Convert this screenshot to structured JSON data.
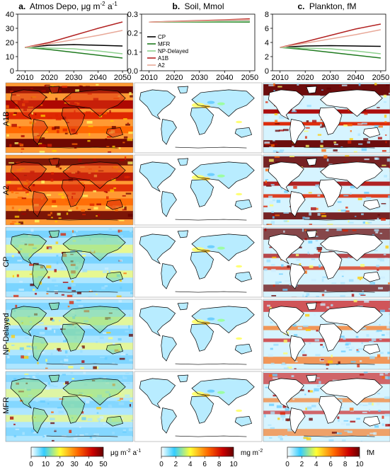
{
  "panels": [
    {
      "letter": "a.",
      "title": "Atmos Depo, μg m",
      "sup1": "-2",
      "mid": " a",
      "sup2": "-1"
    },
    {
      "letter": "b.",
      "title": "Soil, Mmol",
      "sup1": "",
      "mid": "",
      "sup2": ""
    },
    {
      "letter": "c.",
      "title": "Plankton, fM",
      "sup1": "",
      "mid": "",
      "sup2": ""
    }
  ],
  "row_labels": [
    "A1B",
    "A2",
    "CP",
    "NP-Delayed",
    "MFR"
  ],
  "colorbars": [
    {
      "ticks": [
        "0",
        "10",
        "20",
        "30",
        "40",
        "50"
      ],
      "unit": "μg m",
      "unit_sup1": "-2",
      "unit_mid": " a",
      "unit_sup2": "-1"
    },
    {
      "ticks": [
        "0",
        "2",
        "4",
        "6",
        "8",
        "10"
      ],
      "unit": "mg m",
      "unit_sup1": "-2",
      "unit_mid": "",
      "unit_sup2": ""
    },
    {
      "ticks": [
        "0",
        "2",
        "4",
        "6",
        "8",
        "10"
      ],
      "unit": "fM",
      "unit_sup1": "",
      "unit_mid": "",
      "unit_sup2": ""
    }
  ],
  "colors": {
    "CP": "#000000",
    "MFR": "#1f7a1f",
    "NP-Delayed": "#8cd08c",
    "A1B": "#b22222",
    "A2": "#e8a898",
    "colormap": [
      "#ffffff",
      "#33ccff",
      "#ffff33",
      "#ff6600",
      "#cc0000",
      "#660000"
    ]
  },
  "chart_data": [
    {
      "type": "line",
      "title": "Atmos Depo, μg m-2 a-1",
      "x": [
        2010,
        2020,
        2030,
        2040,
        2050
      ],
      "xticks": [
        "2010",
        "2020",
        "2030",
        "2040",
        "2050"
      ],
      "yticks": [
        "0",
        "10",
        "20",
        "30",
        "40"
      ],
      "xlim": [
        2007,
        2052
      ],
      "ylim": [
        0,
        40
      ],
      "legend": "none",
      "series": [
        {
          "name": "CP",
          "values": [
            16.5,
            18.0,
            18.5,
            18.0,
            17.5
          ]
        },
        {
          "name": "MFR",
          "values": [
            16.5,
            15.0,
            13.0,
            11.0,
            9.0
          ]
        },
        {
          "name": "NP-Delayed",
          "values": [
            16.5,
            16.0,
            15.5,
            14.0,
            12.0
          ]
        },
        {
          "name": "A1B",
          "values": [
            16.5,
            20.0,
            25.0,
            30.0,
            34.5
          ]
        },
        {
          "name": "A2",
          "values": [
            16.5,
            19.0,
            22.0,
            25.0,
            28.5
          ]
        }
      ]
    },
    {
      "type": "line",
      "title": "Soil, Mmol",
      "x": [
        2010,
        2020,
        2030,
        2040,
        2050
      ],
      "xticks": [
        "2010",
        "2020",
        "2030",
        "2040",
        "2050"
      ],
      "yticks": [
        "0.0",
        "0.1",
        "0.2",
        "0.3"
      ],
      "xlim": [
        2007,
        2052
      ],
      "ylim": [
        0,
        0.3
      ],
      "legend": "middle-right",
      "series": [
        {
          "name": "CP",
          "values": [
            0.258,
            0.259,
            0.26,
            0.261,
            0.262
          ]
        },
        {
          "name": "MFR",
          "values": [
            0.258,
            0.258,
            0.258,
            0.258,
            0.258
          ]
        },
        {
          "name": "NP-Delayed",
          "values": [
            0.258,
            0.259,
            0.26,
            0.26,
            0.261
          ]
        },
        {
          "name": "A1B",
          "values": [
            0.258,
            0.262,
            0.266,
            0.27,
            0.275
          ]
        },
        {
          "name": "A2",
          "values": [
            0.258,
            0.261,
            0.264,
            0.268,
            0.271
          ]
        }
      ]
    },
    {
      "type": "line",
      "title": "Plankton, fM",
      "x": [
        2010,
        2020,
        2030,
        2040,
        2050
      ],
      "xticks": [
        "2010",
        "2020",
        "2030",
        "2040",
        "2050"
      ],
      "yticks": [
        "0",
        "2",
        "4",
        "6",
        "8"
      ],
      "xlim": [
        2007,
        2052
      ],
      "ylim": [
        0,
        8
      ],
      "legend": "none",
      "series": [
        {
          "name": "CP",
          "values": [
            3.3,
            3.5,
            3.55,
            3.5,
            3.45
          ]
        },
        {
          "name": "MFR",
          "values": [
            3.3,
            3.0,
            2.6,
            2.2,
            1.8
          ]
        },
        {
          "name": "NP-Delayed",
          "values": [
            3.3,
            3.2,
            3.1,
            2.8,
            2.4
          ]
        },
        {
          "name": "A1B",
          "values": [
            3.3,
            4.1,
            5.0,
            5.9,
            6.6
          ]
        },
        {
          "name": "A2",
          "values": [
            3.3,
            3.9,
            4.5,
            5.1,
            5.8
          ]
        }
      ]
    }
  ]
}
